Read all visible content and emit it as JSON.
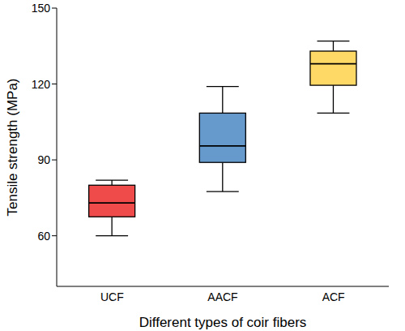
{
  "chart_data": {
    "type": "box",
    "x_label": "Different types of coir fibers",
    "y_label": "Tensile strength (MPa)",
    "categories": [
      "UCF",
      "AACF",
      "ACF"
    ],
    "min": [
      60,
      77.5,
      108.5
    ],
    "q1": [
      67.5,
      89,
      119.5
    ],
    "median": [
      73,
      95.5,
      128
    ],
    "q3": [
      80,
      108.5,
      133
    ],
    "max": [
      82,
      119,
      137
    ],
    "colors": [
      "#ef4b4b",
      "#6699cc",
      "#ffd966"
    ],
    "ylim": [
      40,
      150
    ],
    "yticks": [
      60,
      90,
      120,
      150
    ],
    "grid": false
  }
}
